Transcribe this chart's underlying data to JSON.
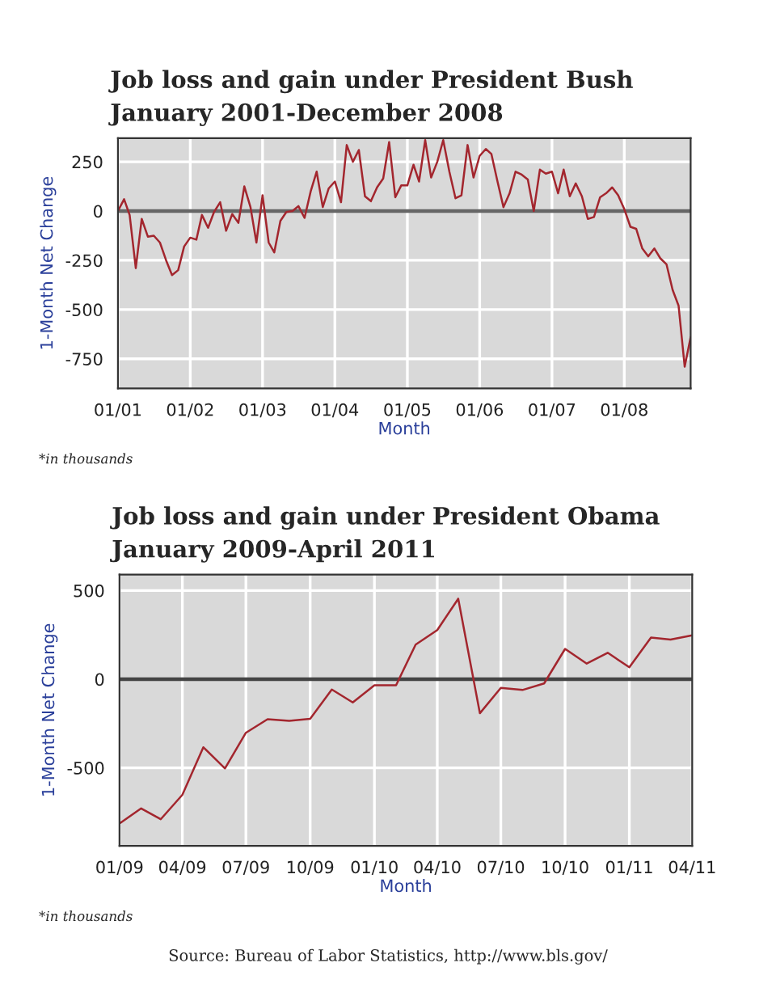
{
  "chart_data": [
    {
      "type": "line",
      "title": "Job loss and gain under President Bush",
      "subtitle": "January 2001-December 2008",
      "xlabel": "Month",
      "ylabel": "1-Month Net Change",
      "x": [
        "2001-01",
        "2001-02",
        "2001-03",
        "2001-04",
        "2001-05",
        "2001-06",
        "2001-07",
        "2001-08",
        "2001-09",
        "2001-10",
        "2001-11",
        "2001-12",
        "2002-01",
        "2002-02",
        "2002-03",
        "2002-04",
        "2002-05",
        "2002-06",
        "2002-07",
        "2002-08",
        "2002-09",
        "2002-10",
        "2002-11",
        "2002-12",
        "2003-01",
        "2003-02",
        "2003-03",
        "2003-04",
        "2003-05",
        "2003-06",
        "2003-07",
        "2003-08",
        "2003-09",
        "2003-10",
        "2003-11",
        "2003-12",
        "2004-01",
        "2004-02",
        "2004-03",
        "2004-04",
        "2004-05",
        "2004-06",
        "2004-07",
        "2004-08",
        "2004-09",
        "2004-10",
        "2004-11",
        "2004-12",
        "2005-01",
        "2005-02",
        "2005-03",
        "2005-04",
        "2005-05",
        "2005-06",
        "2005-07",
        "2005-08",
        "2005-09",
        "2005-10",
        "2005-11",
        "2005-12",
        "2006-01",
        "2006-02",
        "2006-03",
        "2006-04",
        "2006-05",
        "2006-06",
        "2006-07",
        "2006-08",
        "2006-09",
        "2006-10",
        "2006-11",
        "2006-12",
        "2007-01",
        "2007-02",
        "2007-03",
        "2007-04",
        "2007-05",
        "2007-06",
        "2007-07",
        "2007-08",
        "2007-09",
        "2007-10",
        "2007-11",
        "2007-12",
        "2008-01",
        "2008-02",
        "2008-03",
        "2008-04",
        "2008-05",
        "2008-06",
        "2008-07",
        "2008-08",
        "2008-09",
        "2008-10",
        "2008-11",
        "2008-12"
      ],
      "series": [
        {
          "color": "#a3262e",
          "values": [
            0,
            60,
            -20,
            -290,
            -40,
            -130,
            -125,
            -160,
            -250,
            -325,
            -300,
            -180,
            -135,
            -145,
            -20,
            -85,
            -5,
            45,
            -100,
            -15,
            -60,
            125,
            20,
            -160,
            80,
            -160,
            -210,
            -50,
            -5,
            0,
            25,
            -35,
            100,
            200,
            20,
            115,
            150,
            45,
            335,
            250,
            310,
            75,
            50,
            120,
            165,
            350,
            70,
            130,
            130,
            235,
            150,
            360,
            170,
            250,
            360,
            200,
            65,
            80,
            335,
            170,
            280,
            315,
            290,
            150,
            20,
            90,
            200,
            185,
            160,
            0,
            210,
            190,
            200,
            90,
            210,
            75,
            140,
            75,
            -40,
            -30,
            70,
            90,
            120,
            80,
            10,
            -80,
            -90,
            -190,
            -230,
            -190,
            -240,
            -270,
            -400,
            -480,
            -790,
            -640
          ]
        }
      ],
      "xlim": [
        "2001-01",
        "2008-12"
      ],
      "xticks": [
        {
          "value": "2001-01",
          "label": "01/01"
        },
        {
          "value": "2002-01",
          "label": "01/02"
        },
        {
          "value": "2003-01",
          "label": "01/03"
        },
        {
          "value": "2004-01",
          "label": "01/04"
        },
        {
          "value": "2005-01",
          "label": "01/05"
        },
        {
          "value": "2006-01",
          "label": "01/06"
        },
        {
          "value": "2007-01",
          "label": "01/07"
        },
        {
          "value": "2008-01",
          "label": "01/08"
        }
      ],
      "ylim": [
        -900,
        370
      ],
      "yticks": [
        -750,
        -500,
        -250,
        0,
        250
      ],
      "grid": true,
      "line_style": "solid",
      "ref_lines": [
        {
          "axis": "y",
          "value": 0,
          "color": "#666666"
        }
      ],
      "annotations": [
        "*in thousands"
      ]
    },
    {
      "type": "line",
      "title": "Job loss and gain under President Obama",
      "subtitle": "January 2009-April 2011",
      "xlabel": "Month",
      "ylabel": "1-Month Net Change",
      "x": [
        "2009-01",
        "2009-02",
        "2009-03",
        "2009-04",
        "2009-05",
        "2009-06",
        "2009-07",
        "2009-08",
        "2009-09",
        "2009-10",
        "2009-11",
        "2009-12",
        "2010-01",
        "2010-02",
        "2010-03",
        "2010-04",
        "2010-05",
        "2010-06",
        "2010-07",
        "2010-08",
        "2010-09",
        "2010-10",
        "2010-11",
        "2010-12",
        "2011-01",
        "2011-02",
        "2011-03",
        "2011-04"
      ],
      "series": [
        {
          "color": "#a3262e",
          "values": [
            -814,
            -729,
            -790,
            -652,
            -384,
            -503,
            -302,
            -226,
            -235,
            -223,
            -58,
            -131,
            -34,
            -34,
            195,
            277,
            454,
            -192,
            -49,
            -61,
            -24,
            171,
            88,
            149,
            67,
            235,
            223,
            247
          ]
        }
      ],
      "xlim": [
        "2009-01",
        "2011-04"
      ],
      "xticks": [
        {
          "value": "2009-01",
          "label": "01/09"
        },
        {
          "value": "2009-04",
          "label": "04/09"
        },
        {
          "value": "2009-07",
          "label": "07/09"
        },
        {
          "value": "2009-10",
          "label": "10/09"
        },
        {
          "value": "2010-01",
          "label": "01/10"
        },
        {
          "value": "2010-04",
          "label": "04/10"
        },
        {
          "value": "2010-07",
          "label": "07/10"
        },
        {
          "value": "2010-10",
          "label": "10/10"
        },
        {
          "value": "2011-01",
          "label": "01/11"
        },
        {
          "value": "2011-04",
          "label": "04/11"
        }
      ],
      "ylim": [
        -940,
        590
      ],
      "yticks": [
        -500,
        0,
        500
      ],
      "grid": true,
      "line_style": "solid",
      "ref_lines": [
        {
          "axis": "y",
          "value": 0,
          "color": "#444444"
        }
      ],
      "annotations": [
        "*in thousands",
        "Source: Bureau of Labor Statistics, http://www.bls.gov/"
      ]
    }
  ]
}
